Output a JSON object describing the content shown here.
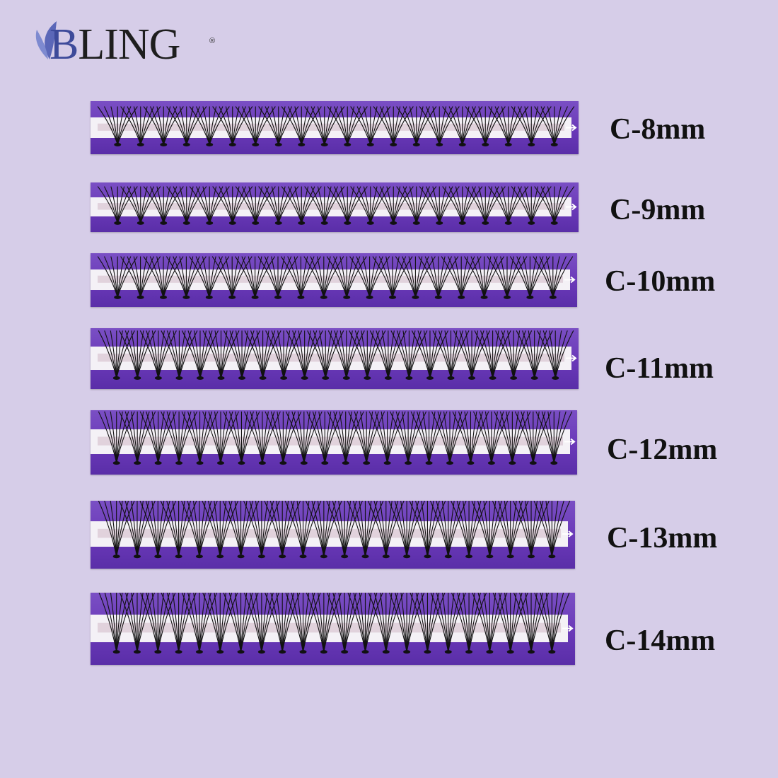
{
  "brand": {
    "name_b": "B",
    "name_rest": "LING",
    "registered": "®"
  },
  "colors": {
    "background": "#d6cde8",
    "tray": "#6a39b8",
    "lash": "#111111"
  },
  "icons": [
    "leaf-logo-icon",
    "arrow-right-icon"
  ],
  "strips": [
    {
      "label": "C-8mm"
    },
    {
      "label": "C-9mm"
    },
    {
      "label": "C-10mm"
    },
    {
      "label": "C-11mm"
    },
    {
      "label": "C-12mm"
    },
    {
      "label": "C-13mm"
    },
    {
      "label": "C-14mm"
    }
  ]
}
